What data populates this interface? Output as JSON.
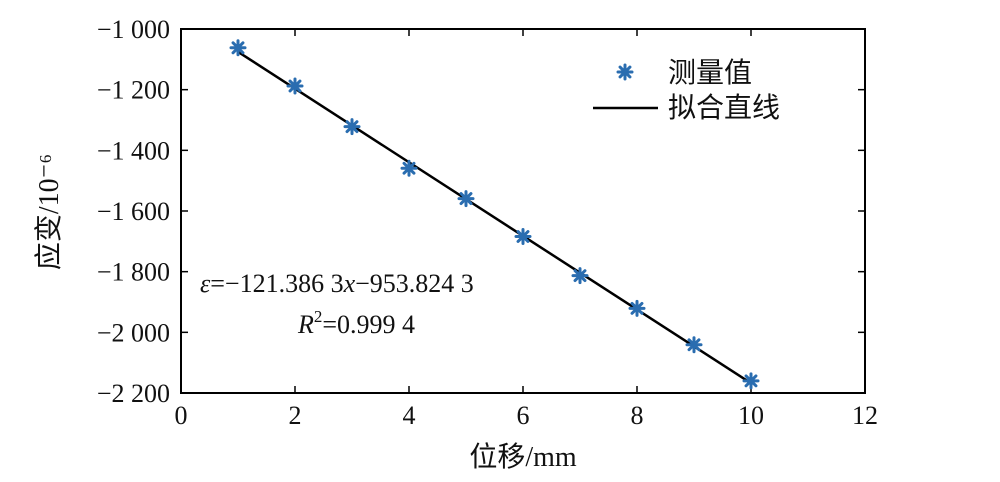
{
  "chart_data": {
    "type": "scatter",
    "xlabel": "位移/mm",
    "ylabel": "应变/10⁻⁶",
    "xlim": [
      0,
      12
    ],
    "ylim": [
      -2200,
      -1000
    ],
    "xticks": [
      0,
      2,
      4,
      6,
      8,
      10,
      12
    ],
    "xtick_labels": [
      "0",
      "2",
      "4",
      "6",
      "8",
      "10",
      "12"
    ],
    "yticks": [
      -1000,
      -1200,
      -1400,
      -1600,
      -1800,
      -2000,
      -2200
    ],
    "ytick_labels": [
      "−1 000",
      "−1 200",
      "−1 400",
      "−1 600",
      "−1 800",
      "−2 000",
      "−2 200"
    ],
    "grid": false,
    "legend_position": "top-right",
    "series": [
      {
        "name": "测量值",
        "type": "scatter",
        "marker": "asterisk",
        "color": "#2a6db0",
        "x": [
          1,
          2,
          3,
          4,
          5,
          6,
          7,
          8,
          9,
          10
        ],
        "y": [
          -1062,
          -1188,
          -1322,
          -1459,
          -1559,
          -1684,
          -1813,
          -1921,
          -2041,
          -2160
        ]
      },
      {
        "name": "拟合直线",
        "type": "line",
        "color": "#000000",
        "slope": -121.3863,
        "intercept": -953.8243,
        "x_range": [
          1,
          10
        ]
      }
    ],
    "annotations": {
      "equation": {
        "eps": "ε",
        "eq_sign": "=",
        "coef": "−121.386 3",
        "x": "x",
        "rest": "−953.824 3"
      },
      "r2": {
        "R": "R",
        "sup": "2",
        "rest": "=0.999 4"
      }
    }
  }
}
